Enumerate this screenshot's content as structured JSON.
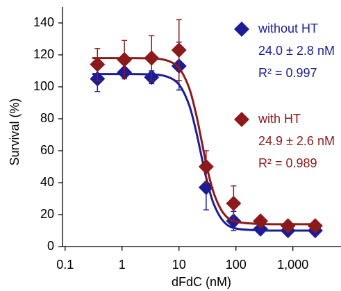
{
  "chart_data": {
    "type": "scatter",
    "x_label": "dFdC (nM)",
    "y_label": "Survival (%)",
    "log_x": true,
    "xlim": [
      0.09,
      7000
    ],
    "ylim": [
      0,
      150
    ],
    "xticks": [
      0.1,
      1,
      10,
      100,
      {
        "value": 1000,
        "label": "1,000"
      }
    ],
    "yticks": [
      0,
      20,
      40,
      60,
      80,
      100,
      120,
      140
    ],
    "x": [
      0.37,
      1.1,
      3.3,
      10,
      30,
      91,
      270,
      820,
      2470
    ],
    "fit_x": [
      0.3,
      1,
      3,
      6,
      10,
      15,
      20,
      25,
      30,
      40,
      60,
      100,
      300,
      1000,
      3000
    ],
    "series": [
      {
        "name": "without HT",
        "color": "#1c1c96",
        "ic50_label": "24.0 ± 2.8 nM",
        "r2_label": "R² = 0.997",
        "values": [
          105,
          109,
          106,
          113,
          37,
          16,
          11,
          10,
          10
        ],
        "errors": [
          8,
          3,
          4,
          15,
          14,
          6,
          2,
          1,
          1
        ],
        "fit_values": [
          108,
          108,
          107.8,
          106.5,
          101.4,
          88.8,
          72.1,
          56,
          43.2,
          27.4,
          15.9,
          11.3,
          10.1,
          10,
          10
        ]
      },
      {
        "name": "with HT",
        "color": "#8c1a1a",
        "ic50_label": "24.9 ± 2.6 nM",
        "r2_label": "R² = 0.989",
        "values": [
          114,
          117,
          118,
          123,
          50,
          27,
          16,
          13,
          13
        ],
        "errors": [
          10,
          12,
          14,
          19,
          10,
          11,
          3,
          1,
          1
        ],
        "fit_values": [
          118,
          118,
          117.8,
          116.6,
          111.7,
          99.5,
          82.8,
          66,
          52.1,
          34.4,
          21,
          15.6,
          14.1,
          14,
          14
        ]
      }
    ]
  }
}
